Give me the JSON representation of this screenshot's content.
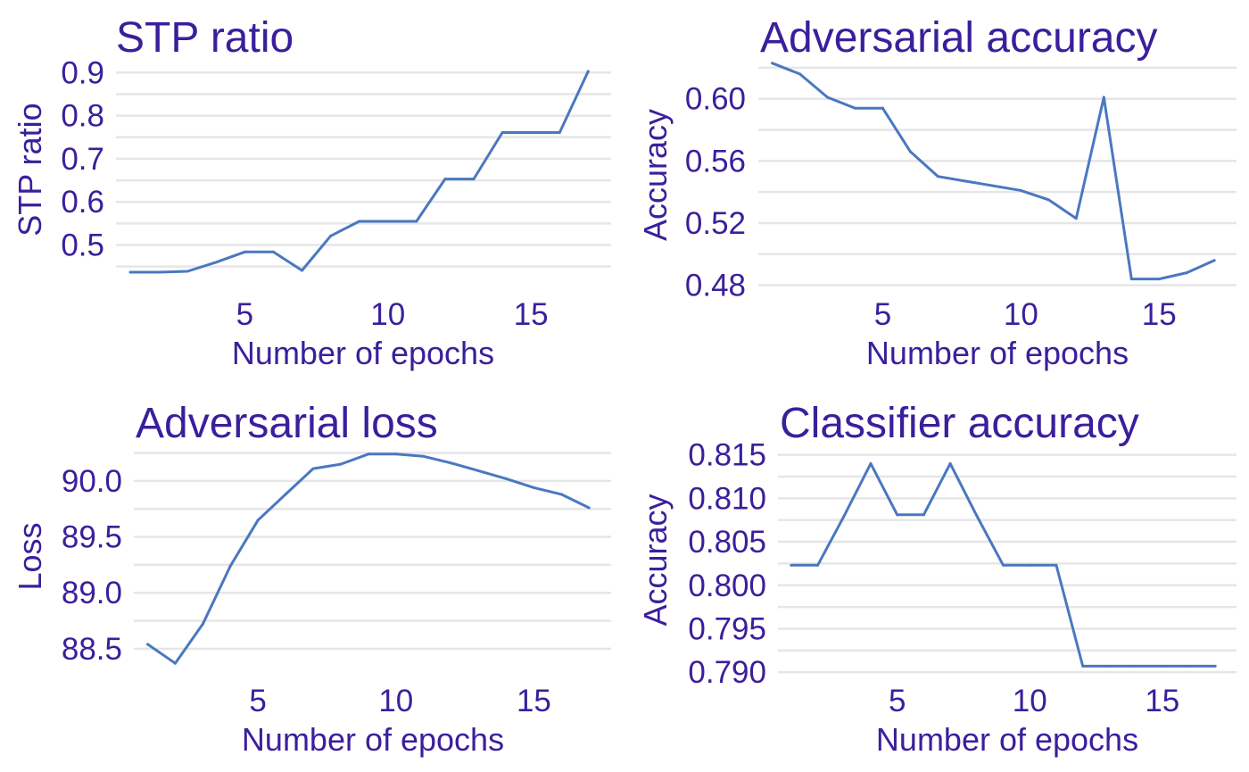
{
  "colors": {
    "text": "#3a1f9c",
    "line": "#4a78c0",
    "grid": "#e6e6e6"
  },
  "chart_data": [
    {
      "type": "line",
      "title": "STP ratio",
      "xlabel": "Number of epochs",
      "ylabel": "STP ratio",
      "x": [
        1,
        2,
        3,
        4,
        5,
        6,
        7,
        8,
        9,
        10,
        11,
        12,
        13,
        14,
        15,
        16,
        17
      ],
      "series": [
        {
          "values": [
            0.437,
            0.437,
            0.439,
            0.46,
            0.484,
            0.484,
            0.441,
            0.521,
            0.555,
            0.555,
            0.555,
            0.653,
            0.653,
            0.761,
            0.761,
            0.761,
            0.903
          ]
        }
      ],
      "xticks": [
        5,
        10,
        15
      ],
      "xtick_labels": [
        "5",
        "10",
        "15"
      ],
      "yticks": [
        0.5,
        0.6,
        0.7,
        0.8,
        0.9
      ],
      "ytick_labels": [
        "0.5",
        "0.6",
        "0.7",
        "0.8",
        "0.9"
      ],
      "xlim": [
        0.5,
        17.8
      ],
      "ylim": [
        0.41,
        0.94
      ],
      "grid": true
    },
    {
      "type": "line",
      "title": "Adversarial accuracy",
      "xlabel": "Number of epochs",
      "ylabel": "Accuracy",
      "x": [
        1,
        2,
        3,
        4,
        5,
        6,
        7,
        8,
        9,
        10,
        11,
        12,
        13,
        14,
        15,
        16,
        17
      ],
      "series": [
        {
          "values": [
            0.623,
            0.616,
            0.601,
            0.594,
            0.594,
            0.566,
            0.55,
            0.547,
            0.544,
            0.541,
            0.535,
            0.523,
            0.601,
            0.484,
            0.484,
            0.488,
            0.496
          ]
        }
      ],
      "xticks": [
        5,
        10,
        15
      ],
      "xtick_labels": [
        "5",
        "10",
        "15"
      ],
      "yticks": [
        0.48,
        0.52,
        0.56,
        0.6
      ],
      "ytick_labels": [
        "0.48",
        "0.52",
        "0.56",
        "0.60"
      ],
      "xlim": [
        0.5,
        17.8
      ],
      "ylim": [
        0.474,
        0.628
      ],
      "grid": true
    },
    {
      "type": "line",
      "title": "Adversarial loss",
      "xlabel": "Number of epochs",
      "ylabel": "Loss",
      "x": [
        1,
        2,
        3,
        4,
        5,
        6,
        7,
        8,
        9,
        10,
        11,
        12,
        13,
        14,
        15,
        16,
        17
      ],
      "series": [
        {
          "values": [
            88.54,
            88.37,
            88.72,
            89.24,
            89.65,
            89.88,
            90.11,
            90.15,
            90.24,
            90.24,
            90.22,
            90.16,
            90.09,
            90.02,
            89.94,
            89.88,
            89.76
          ]
        }
      ],
      "xticks": [
        5,
        10,
        15
      ],
      "xtick_labels": [
        "5",
        "10",
        "15"
      ],
      "yticks": [
        88.5,
        89.0,
        89.5,
        90.0
      ],
      "ytick_labels": [
        "88.5",
        "89.0",
        "89.5",
        "90.0"
      ],
      "xlim": [
        0.5,
        17.8
      ],
      "ylim": [
        88.3,
        90.35
      ],
      "grid": true
    },
    {
      "type": "line",
      "title": "Classifier accuracy",
      "xlabel": "Number of epochs",
      "ylabel": "Accuracy",
      "x": [
        1,
        2,
        3,
        4,
        5,
        6,
        7,
        8,
        9,
        10,
        11,
        12,
        13,
        14,
        15,
        16,
        17
      ],
      "series": [
        {
          "values": [
            0.8023,
            0.8023,
            0.808,
            0.814,
            0.8081,
            0.8081,
            0.814,
            0.808,
            0.8023,
            0.8023,
            0.8023,
            0.7907,
            0.7907,
            0.7907,
            0.7907,
            0.7907,
            0.7907
          ]
        }
      ],
      "xticks": [
        5,
        10,
        15
      ],
      "xtick_labels": [
        "5",
        "10",
        "15"
      ],
      "yticks": [
        0.79,
        0.795,
        0.8,
        0.805,
        0.81,
        0.815
      ],
      "ytick_labels": [
        "0.790",
        "0.795",
        "0.800",
        "0.805",
        "0.810",
        "0.815"
      ],
      "xlim": [
        0.5,
        17.8
      ],
      "ylim": [
        0.7893,
        0.8165
      ],
      "grid": true
    }
  ]
}
